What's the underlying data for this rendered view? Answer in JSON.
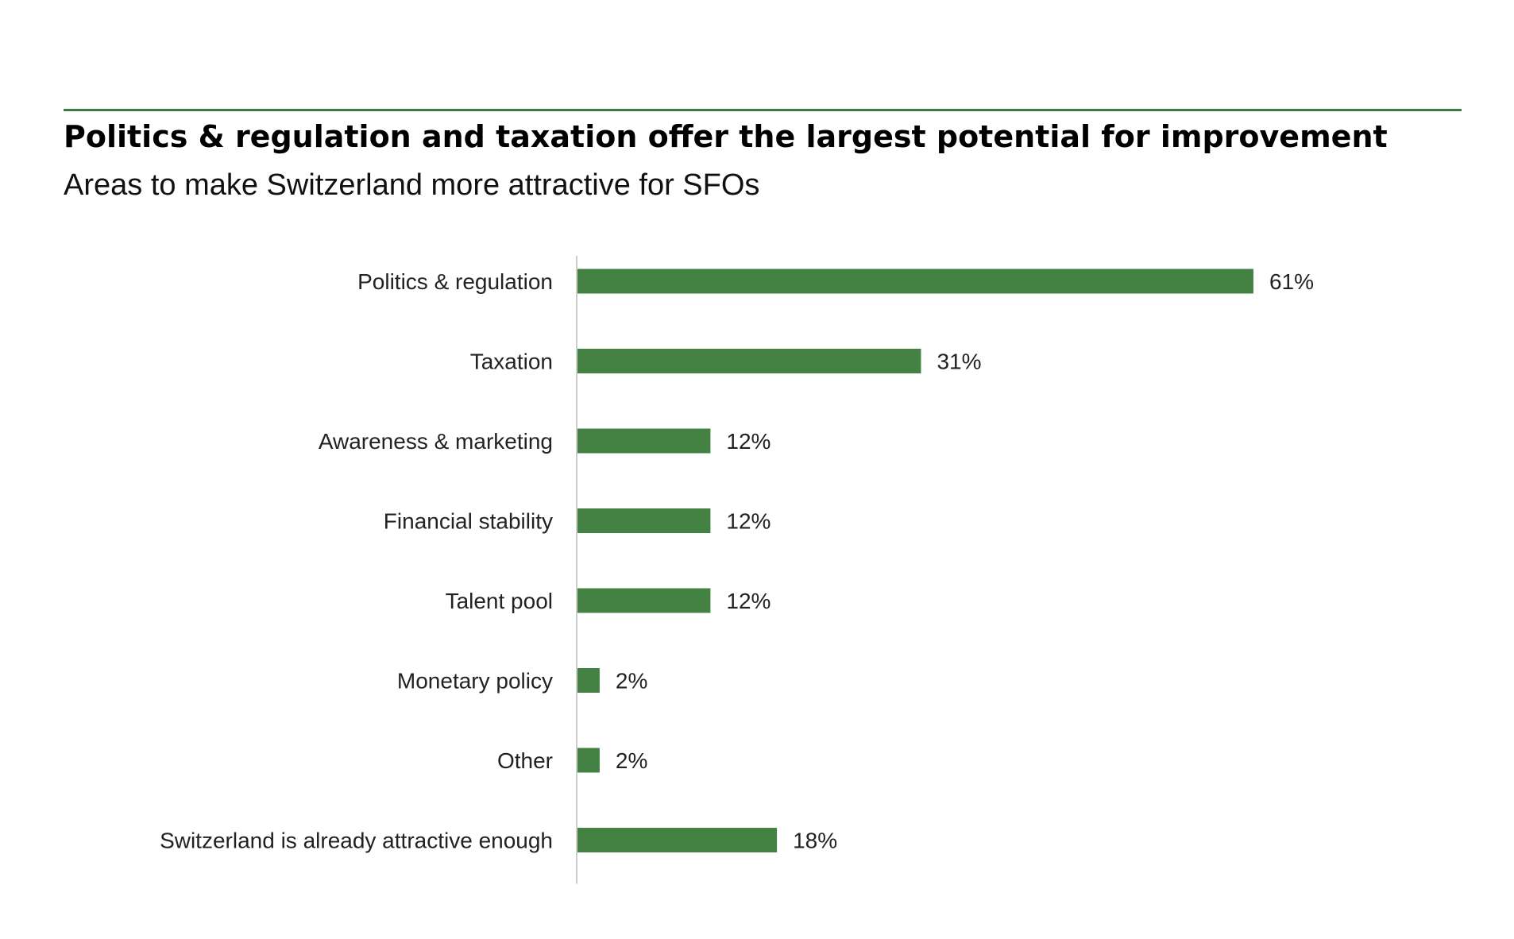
{
  "header": {
    "title": "Politics & regulation and taxation offer the largest potential for improvement",
    "subtitle": "Areas to make Switzerland more attractive for SFOs"
  },
  "colors": {
    "bar": "#448244",
    "rule": "#3f7a3f",
    "axis": "#cccccc",
    "text": "#222222"
  },
  "chart_data": {
    "type": "bar",
    "orientation": "horizontal",
    "title": "Politics & regulation and taxation offer the largest potential for improvement",
    "subtitle": "Areas to make Switzerland more attractive for SFOs",
    "categories": [
      "Politics & regulation",
      "Taxation",
      "Awareness & marketing",
      "Financial stability",
      "Talent pool",
      "Monetary policy",
      "Other",
      "Switzerland is already attractive enough"
    ],
    "values": [
      61,
      31,
      12,
      12,
      12,
      2,
      2,
      18
    ],
    "value_labels": [
      "61%",
      "31%",
      "12%",
      "12%",
      "12%",
      "2%",
      "2%",
      "18%"
    ],
    "unit": "%",
    "xlim": [
      0,
      100
    ],
    "grid": false,
    "legend": "none"
  }
}
